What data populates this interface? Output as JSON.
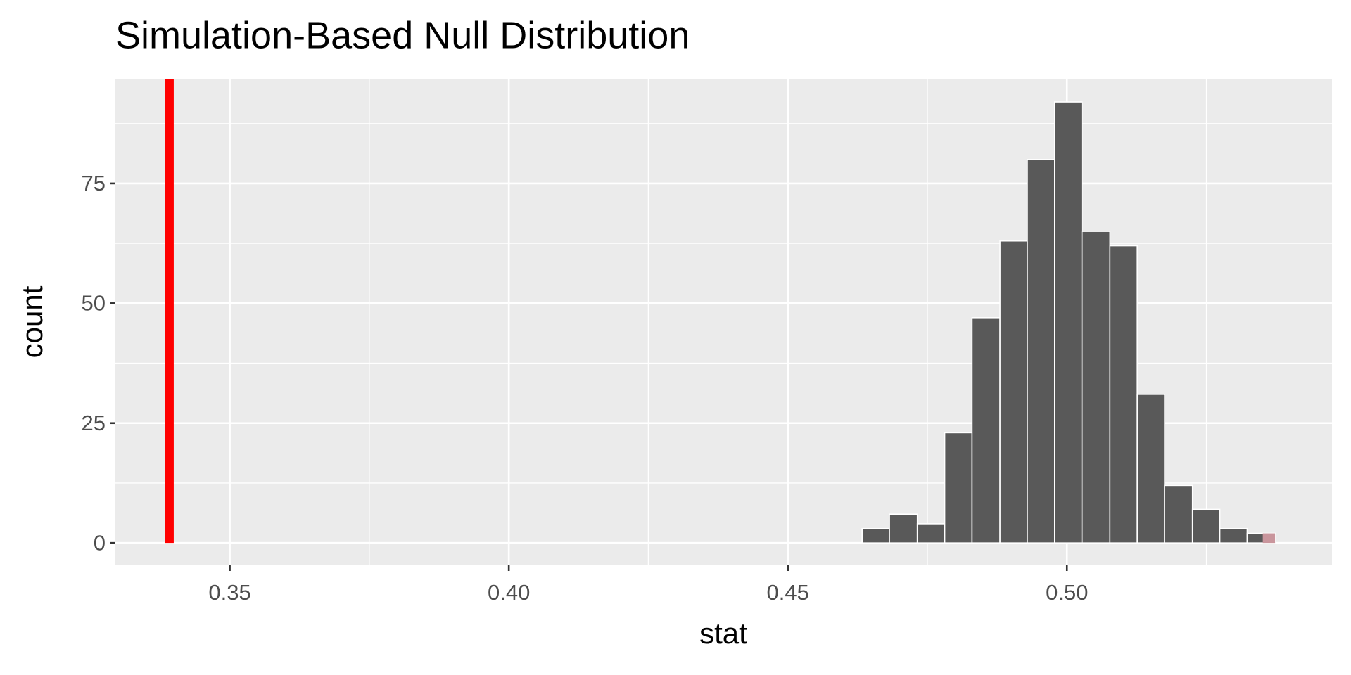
{
  "chart_data": {
    "type": "histogram",
    "title": "Simulation-Based Null Distribution",
    "x_label": "stat",
    "y_label": "count",
    "bins": [
      0.4633,
      0.4682,
      0.4732,
      0.4781,
      0.483,
      0.488,
      0.4929,
      0.4978,
      0.5027,
      0.5077,
      0.5126,
      0.5175,
      0.5225,
      0.5274,
      0.5323,
      0.5373
    ],
    "values": [
      3,
      6,
      4,
      23,
      47,
      63,
      80,
      92,
      65,
      62,
      31,
      12,
      7,
      3,
      2
    ],
    "color": "#595959",
    "edge_color": "#ffffff",
    "obs_stat": 0.3392,
    "obs_color": "#ff0000",
    "shade_from": 0.5351,
    "shade_color": "#c9959c",
    "xlim": [
      0.3295,
      0.5475
    ],
    "xticks": [
      0.35,
      {
        "value": 0.4,
        "label": "0.40"
      },
      0.45,
      {
        "value": 0.5,
        "label": "0.50"
      }
    ],
    "ylim": [
      -4.67,
      96.7
    ],
    "yticks": [
      0,
      25,
      50,
      75
    ],
    "grid": true,
    "panel_color": "#ebebeb"
  }
}
